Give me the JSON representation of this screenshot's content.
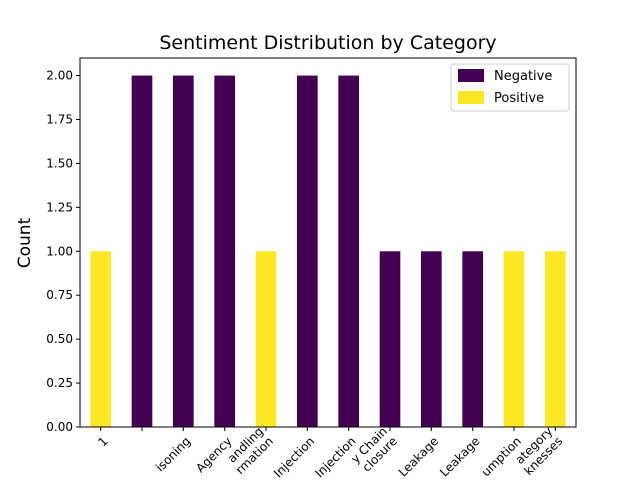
{
  "chart_data": {
    "type": "bar",
    "title": "Sentiment Distribution by Category",
    "xlabel": "",
    "ylabel": "Count",
    "ylim": [
      0,
      2.1
    ],
    "yticks": [
      "0.00",
      "0.25",
      "0.50",
      "0.75",
      "1.00",
      "1.25",
      "1.50",
      "1.75",
      "2.00"
    ],
    "categories": [
      [
        "1"
      ],
      [
        ""
      ],
      [
        "isoning"
      ],
      [
        "Agency"
      ],
      [
        "andling",
        "rmation"
      ],
      [
        "Injection"
      ],
      [
        "Injection"
      ],
      [
        "y Chain",
        "closure"
      ],
      [
        "Leakage"
      ],
      [
        "Leakage"
      ],
      [
        "umption"
      ],
      [
        "ategory",
        "knesses"
      ]
    ],
    "grid": false,
    "legend_position": "top-right",
    "stacked": true,
    "series": [
      {
        "name": "Negative",
        "color": "#440154",
        "values": [
          0,
          2,
          2,
          2,
          0,
          2,
          2,
          1,
          1,
          1,
          0,
          0
        ]
      },
      {
        "name": "Positive",
        "color": "#fde725",
        "values": [
          1,
          0,
          0,
          0,
          1,
          0,
          0,
          0,
          0,
          0,
          1,
          1
        ]
      }
    ]
  }
}
